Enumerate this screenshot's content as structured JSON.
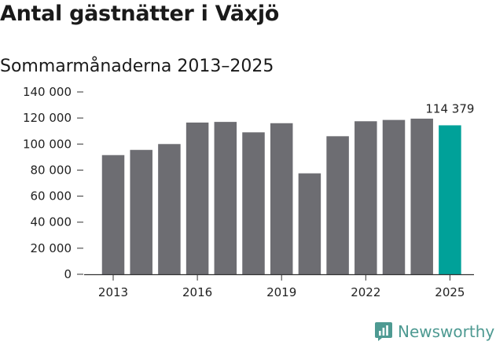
{
  "title": "Antal gästnätter i Växjö",
  "subtitle": "Sommarmånaderna 2013–2025",
  "brand": {
    "name": "Newsworthy"
  },
  "colors": {
    "bar": "#6d6d72",
    "highlight": "#00a199",
    "brand": "#4e9a92"
  },
  "chart_data": {
    "type": "bar",
    "title": "Antal gästnätter i Växjö",
    "subtitle": "Sommarmånaderna 2013–2025",
    "categories": [
      "2013",
      "2014",
      "2015",
      "2016",
      "2017",
      "2018",
      "2019",
      "2020",
      "2021",
      "2022",
      "2023",
      "2024",
      "2025"
    ],
    "values": [
      91500,
      95500,
      100000,
      116500,
      117000,
      109000,
      116000,
      77500,
      106000,
      117500,
      118500,
      119500,
      114379
    ],
    "highlight_index": 12,
    "data_labels": [
      {
        "index": 12,
        "text": "114 379"
      }
    ],
    "x_tick_labels": [
      "2013",
      "2016",
      "2019",
      "2022",
      "2025"
    ],
    "y_tick_labels": [
      "0",
      "20 000",
      "40 000",
      "60 000",
      "80 000",
      "100 000",
      "120 000",
      "140 000"
    ],
    "y_ticks": [
      0,
      20000,
      40000,
      60000,
      80000,
      100000,
      120000,
      140000
    ],
    "ylim": [
      0,
      140000
    ],
    "grid": false,
    "legend": "none"
  }
}
